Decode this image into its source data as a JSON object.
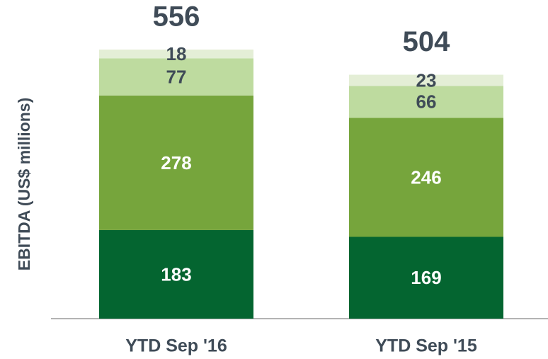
{
  "chart_data": {
    "type": "stacked_bar",
    "y_label": "EBITDA (US$ millions)",
    "categories": [
      "YTD Sep '16",
      "YTD Sep '15"
    ],
    "totals": [
      556,
      504
    ],
    "series": [
      {
        "color": "#046530",
        "label_color": "#ffffff",
        "values": [
          183,
          169
        ]
      },
      {
        "color": "#76a53c",
        "label_color": "#ffffff",
        "values": [
          278,
          246
        ]
      },
      {
        "color": "#bedb9f",
        "label_color": "#3f4b57",
        "values": [
          77,
          66
        ]
      },
      {
        "color": "#e4eed6",
        "label_color": "#3f4b57",
        "values": [
          18,
          23
        ]
      }
    ]
  }
}
